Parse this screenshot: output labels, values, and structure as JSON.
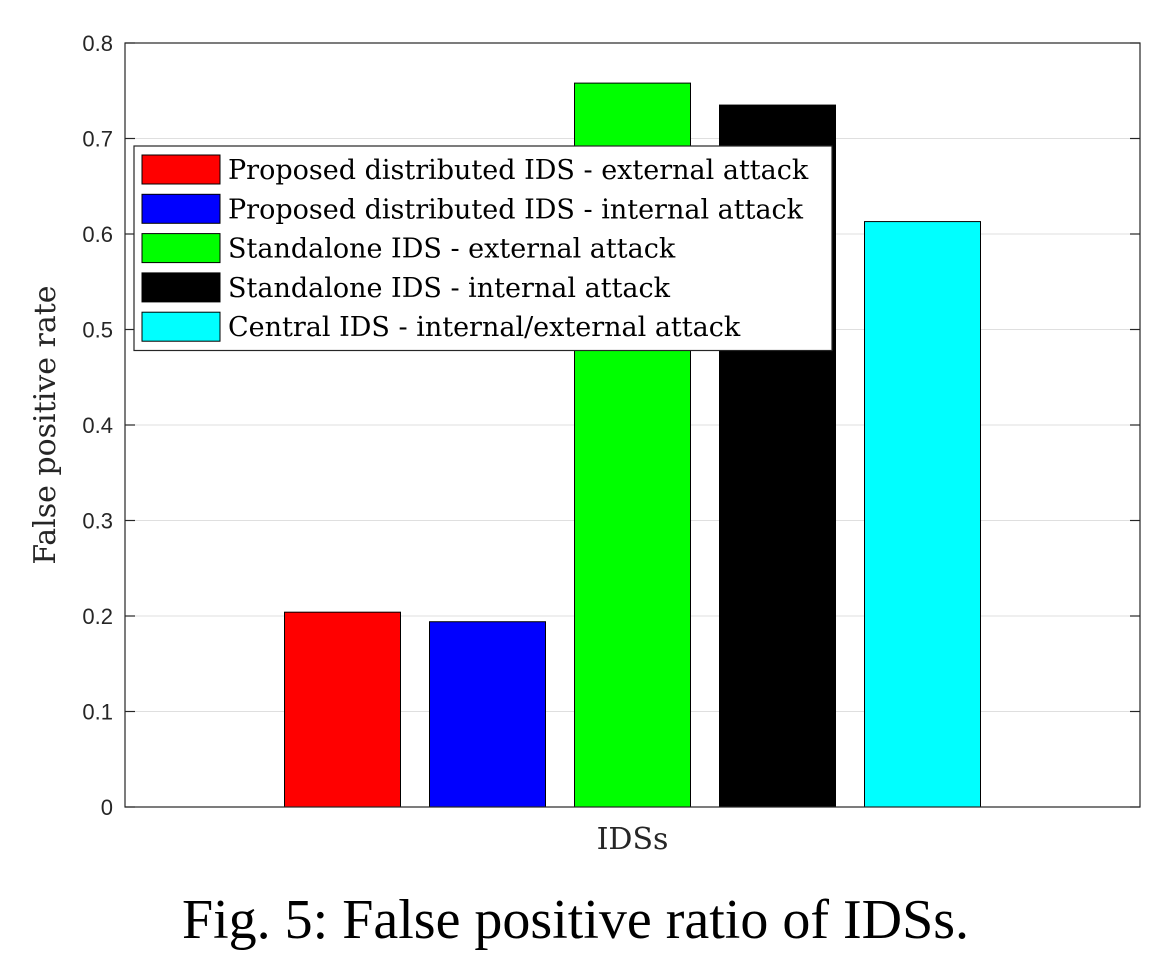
{
  "caption": "Fig. 5: False positive ratio of IDSs.",
  "chart_data": {
    "type": "bar",
    "xlabel": "IDSs",
    "ylabel": "False positive rate",
    "ylim": [
      0,
      0.8
    ],
    "yticks": [
      "0",
      "0.1",
      "0.2",
      "0.3",
      "0.4",
      "0.5",
      "0.6",
      "0.7",
      "0.8"
    ],
    "grid": true,
    "legend_placement": "top-left",
    "series": [
      {
        "name": "Proposed distributed IDS - external attack",
        "value": 0.204,
        "color": "#ff0000"
      },
      {
        "name": "Proposed distributed IDS - internal attack",
        "value": 0.194,
        "color": "#0000ff"
      },
      {
        "name": "Standalone IDS - external attack",
        "value": 0.758,
        "color": "#00ff00"
      },
      {
        "name": "Standalone IDS - internal attack",
        "value": 0.735,
        "color": "#000000"
      },
      {
        "name": "Central IDS - internal/external attack",
        "value": 0.613,
        "color": "#00ffff"
      }
    ]
  }
}
